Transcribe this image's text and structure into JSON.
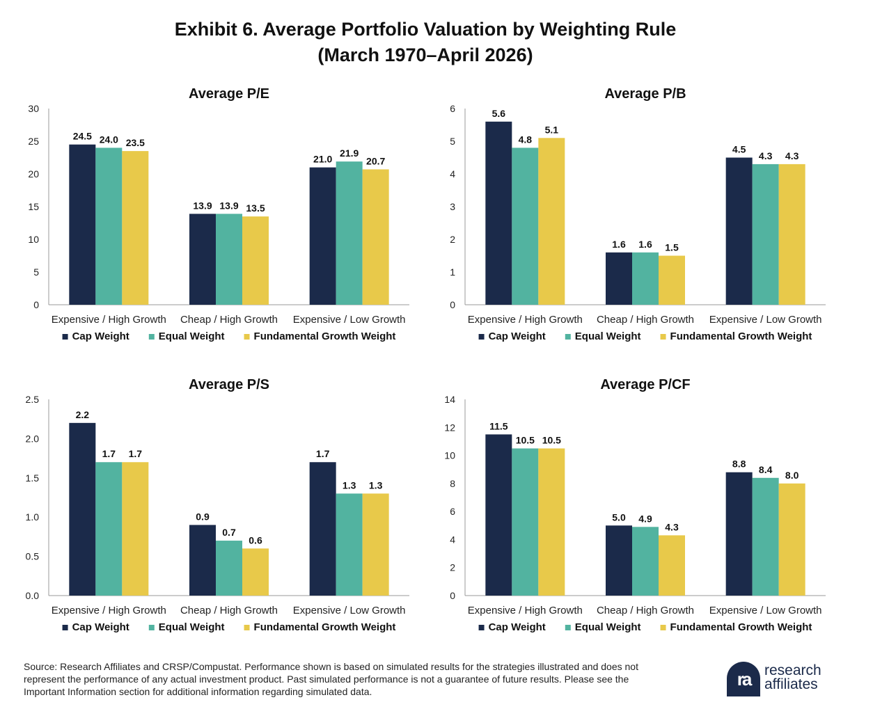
{
  "title": {
    "line1": "Exhibit 6. Average Portfolio Valuation by Weighting Rule",
    "line2": "(March 1970–April 2026)"
  },
  "colors": {
    "cap_weight": "#1b2a4a",
    "equal_weight": "#52b3a0",
    "fundamental_growth_weight": "#e8c94a",
    "axis": "#999999"
  },
  "chart_data": [
    {
      "type": "bar",
      "title": "Average P/E",
      "categories": [
        "Expensive / High Growth",
        "Cheap / High Growth",
        "Expensive / Low Growth"
      ],
      "series": [
        {
          "name": "Cap Weight",
          "values": [
            24.5,
            13.9,
            21.0
          ]
        },
        {
          "name": "Equal Weight",
          "values": [
            24.0,
            13.9,
            21.9
          ]
        },
        {
          "name": "Fundamental Growth Weight",
          "values": [
            23.5,
            13.5,
            20.7
          ]
        }
      ],
      "ylim": [
        0,
        30
      ],
      "yticks": [
        "0",
        "5",
        "10",
        "15",
        "20",
        "25",
        "30"
      ],
      "value_labels": [
        [
          "24.5",
          "13.9",
          "21.0"
        ],
        [
          "24.0",
          "13.9",
          "21.9"
        ],
        [
          "23.5",
          "13.5",
          "20.7"
        ]
      ],
      "grid": false,
      "legend": "bottom"
    },
    {
      "type": "bar",
      "title": "Average P/B",
      "categories": [
        "Expensive / High Growth",
        "Cheap / High Growth",
        "Expensive / Low Growth"
      ],
      "series": [
        {
          "name": "Cap Weight",
          "values": [
            5.6,
            1.6,
            4.5
          ]
        },
        {
          "name": "Equal Weight",
          "values": [
            4.8,
            1.6,
            4.3
          ]
        },
        {
          "name": "Fundamental Growth Weight",
          "values": [
            5.1,
            1.5,
            4.3
          ]
        }
      ],
      "ylim": [
        0,
        6
      ],
      "yticks": [
        "0",
        "1",
        "2",
        "3",
        "4",
        "5",
        "6"
      ],
      "value_labels": [
        [
          "5.6",
          "1.6",
          "4.5"
        ],
        [
          "4.8",
          "1.6",
          "4.3"
        ],
        [
          "5.1",
          "1.5",
          "4.3"
        ]
      ],
      "grid": false,
      "legend": "bottom"
    },
    {
      "type": "bar",
      "title": "Average P/S",
      "categories": [
        "Expensive / High Growth",
        "Cheap / High Growth",
        "Expensive / Low Growth"
      ],
      "series": [
        {
          "name": "Cap Weight",
          "values": [
            2.2,
            0.9,
            1.7
          ]
        },
        {
          "name": "Equal Weight",
          "values": [
            1.7,
            0.7,
            1.3
          ]
        },
        {
          "name": "Fundamental Growth Weight",
          "values": [
            1.7,
            0.6,
            1.3
          ]
        }
      ],
      "ylim": [
        0,
        2.5
      ],
      "yticks": [
        "0.0",
        "0.5",
        "1.0",
        "1.5",
        "2.0",
        "2.5"
      ],
      "value_labels": [
        [
          "2.2",
          "0.9",
          "1.7"
        ],
        [
          "1.7",
          "0.7",
          "1.3"
        ],
        [
          "1.7",
          "0.6",
          "1.3"
        ]
      ],
      "grid": false,
      "legend": "bottom"
    },
    {
      "type": "bar",
      "title": "Average P/CF",
      "categories": [
        "Expensive / High Growth",
        "Cheap / High Growth",
        "Expensive / Low Growth"
      ],
      "series": [
        {
          "name": "Cap Weight",
          "values": [
            11.5,
            5.0,
            8.8
          ]
        },
        {
          "name": "Equal Weight",
          "values": [
            10.5,
            4.9,
            8.4
          ]
        },
        {
          "name": "Fundamental Growth Weight",
          "values": [
            10.5,
            4.3,
            8.0
          ]
        }
      ],
      "ylim": [
        0,
        14
      ],
      "yticks": [
        "0",
        "2",
        "4",
        "6",
        "8",
        "10",
        "12",
        "14"
      ],
      "value_labels": [
        [
          "11.5",
          "5.0",
          "8.8"
        ],
        [
          "10.5",
          "4.9",
          "8.4"
        ],
        [
          "10.5",
          "4.3",
          "8.0"
        ]
      ],
      "grid": false,
      "legend": "bottom"
    }
  ],
  "source": "Source: Research Affiliates and CRSP/Compustat. Performance shown is based on simulated results for the strategies illustrated and does not represent the performance of any actual investment product. Past simulated performance is not a guarantee of future results. Please see the Important Information section for additional information regarding simulated data.",
  "logo": {
    "mark": "ra",
    "line1": "research",
    "line2": "affiliates"
  }
}
